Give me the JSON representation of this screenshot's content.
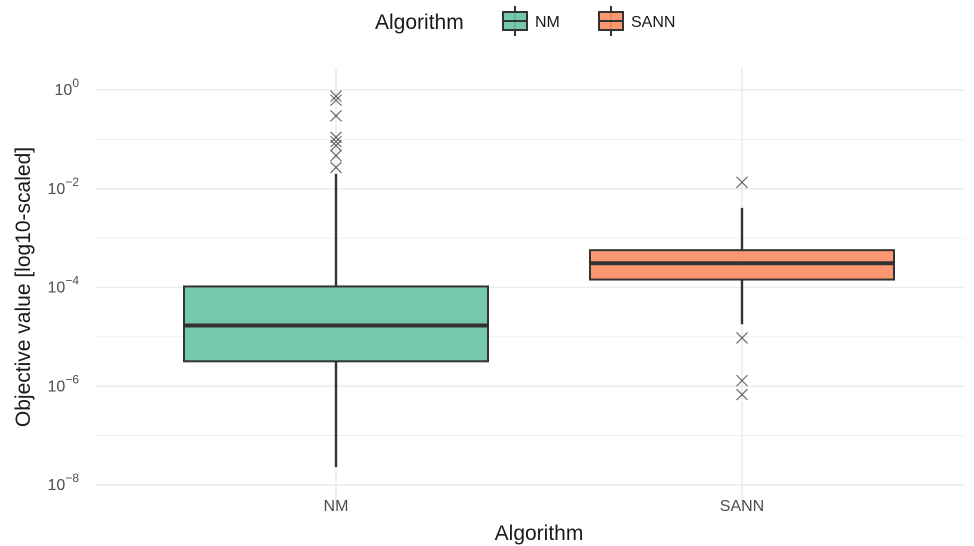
{
  "chart_data": {
    "type": "boxplot",
    "title": "",
    "xlabel": "Algorithm",
    "ylabel": "Objective value [log10-scaled]",
    "y_scale": "log10",
    "ylim": [
      1e-08,
      1
    ],
    "y_ticks": [
      {
        "value": 1e-08,
        "base": "10",
        "exp": "−8"
      },
      {
        "value": 1e-06,
        "base": "10",
        "exp": "−6"
      },
      {
        "value": 0.0001,
        "base": "10",
        "exp": "−4"
      },
      {
        "value": 0.01,
        "base": "10",
        "exp": "−2"
      },
      {
        "value": 1,
        "base": "10",
        "exp": "0"
      }
    ],
    "categories": [
      "NM",
      "SANN"
    ],
    "legend": {
      "title": "Algorithm",
      "position": "top",
      "entries": [
        "NM",
        "SANN"
      ]
    },
    "grid": true,
    "series": [
      {
        "name": "NM",
        "color": "#66c2a5",
        "whisker_low": 2.3e-08,
        "q1": 3.2e-06,
        "median": 1.7e-05,
        "q3": 0.000105,
        "whisker_high": 0.02,
        "outliers": [
          0.75,
          0.62,
          0.3,
          0.11,
          0.09,
          0.075,
          0.047,
          0.027
        ]
      },
      {
        "name": "SANN",
        "color": "#fc8d62",
        "whisker_low": 1.8e-05,
        "q1": 0.000145,
        "median": 0.00031,
        "q3": 0.00057,
        "whisker_high": 0.0041,
        "outliers": [
          0.0135,
          9.5e-06,
          1.3e-06,
          6.8e-07
        ]
      }
    ]
  }
}
